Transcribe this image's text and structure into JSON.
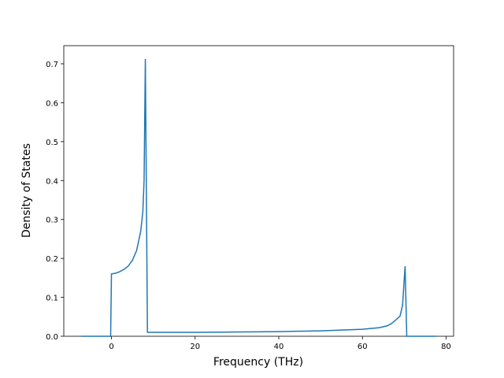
{
  "chart_data": {
    "type": "line",
    "xlabel": "Frequency (THz)",
    "ylabel": "Density of States",
    "x": [
      -7.2,
      -0.2,
      0.0,
      1,
      2,
      3,
      4,
      5,
      6,
      7,
      7.5,
      7.8,
      8.1,
      8.6,
      20,
      40,
      50,
      60,
      64,
      66,
      67,
      68,
      69,
      69.6,
      70.2,
      70.6,
      77.6
    ],
    "series": [
      {
        "color": "#1f77b4",
        "values": [
          0,
          0,
          0.16,
          0.162,
          0.166,
          0.172,
          0.18,
          0.195,
          0.22,
          0.27,
          0.32,
          0.4,
          0.712,
          0.01,
          0.01,
          0.012,
          0.014,
          0.018,
          0.022,
          0.027,
          0.033,
          0.042,
          0.052,
          0.08,
          0.18,
          0,
          0
        ]
      }
    ],
    "xlim": [
      -11.4,
      81.8
    ],
    "ylim": [
      0,
      0.7465
    ],
    "xticks": [
      0,
      20,
      40,
      60,
      80
    ],
    "yticks": [
      {
        "value": 0,
        "label": "0.0"
      },
      0.1,
      0.2,
      0.3,
      0.4,
      0.5,
      0.6,
      0.7
    ]
  }
}
